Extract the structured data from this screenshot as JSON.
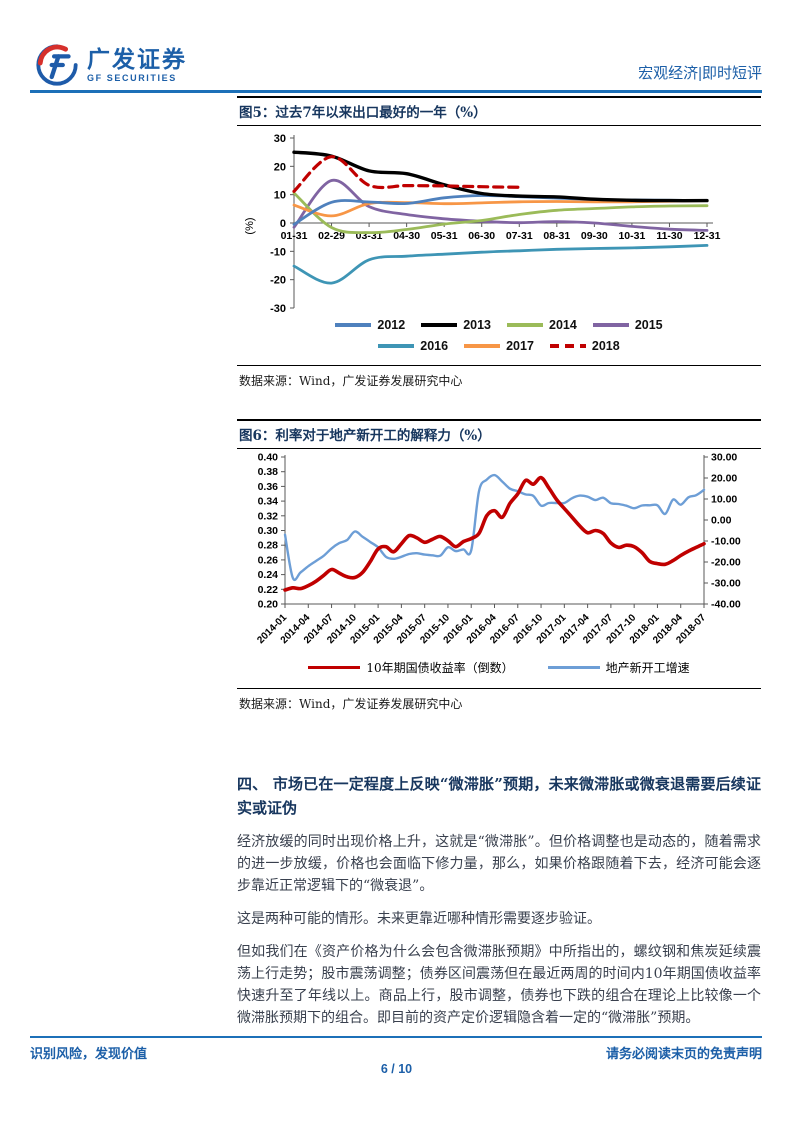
{
  "header": {
    "logo_cn": "广发证券",
    "logo_en": "GF SECURITIES",
    "report_type": "宏观经济|即时短评",
    "accent_color": "#1C70B8",
    "brand_color": "#1C5FA8"
  },
  "figure5": {
    "title": "图5：过去7年以来出口最好的一年（%）",
    "source": "数据来源：Wind，广发证券发展研究中心",
    "ylabel": "(%)"
  },
  "figure6": {
    "title": "图6：利率对于地产新开工的解释力（%）",
    "source": "数据来源：Wind，广发证券发展研究中心"
  },
  "section": {
    "heading": "四、 市场已在一定程度上反映“微滞胀”预期，未来微滞胀或微衰退需要后续证实或证伪",
    "paragraphs": [
      "经济放缓的同时出现价格上升，这就是“微滞胀”。但价格调整也是动态的，随着需求的进一步放缓，价格也会面临下修力量，那么，如果价格跟随着下去，经济可能会逐步靠近正常逻辑下的“微衰退”。",
      "这是两种可能的情形。未来更靠近哪种情形需要逐步验证。",
      "但如我们在《资产价格为什么会包含微滞胀预期》中所指出的，螺纹钢和焦炭延续震荡上行走势；股市震荡调整；债券区间震荡但在最近两周的时间内10年期国债收益率快速升至了年线以上。商品上行，股市调整，债券也下跌的组合在理论上比较像一个微滞胀预期下的组合。即目前的资产定价逻辑隐含着一定的“微滞胀”预期。"
    ]
  },
  "footer": {
    "left": "识别风险，发现价值",
    "right": "请务必阅读末页的免责声明",
    "page": "6 / 10"
  },
  "chart_data": [
    {
      "type": "line",
      "title": "过去7年以来出口最好的一年（%）",
      "ylabel": "(%)",
      "ylim": [
        -30,
        30
      ],
      "yticks": [
        30,
        20,
        10,
        0,
        -10,
        -20,
        -30
      ],
      "grid": false,
      "legend_position": "bottom",
      "categories": [
        "01-31",
        "02-29",
        "03-31",
        "04-30",
        "05-31",
        "06-30",
        "07-31",
        "08-31",
        "09-30",
        "10-31",
        "11-30",
        "12-31"
      ],
      "series": [
        {
          "name": "2012",
          "color": "#4F81BD",
          "style": "solid",
          "values": [
            -0.5,
            7.3,
            7.4,
            6.9,
            8.9,
            9.7,
            9.3,
            8.8,
            8.3,
            8.1,
            8.0,
            7.9
          ]
        },
        {
          "name": "2013",
          "color": "#000000",
          "style": "solid",
          "values": [
            25.0,
            23.6,
            18.4,
            17.4,
            13.5,
            10.4,
            9.5,
            9.2,
            8.4,
            8.0,
            7.9,
            7.9
          ]
        },
        {
          "name": "2014",
          "color": "#9BBB59",
          "style": "solid",
          "values": [
            10.6,
            -1.6,
            -3.4,
            -2.3,
            -0.4,
            0.9,
            3.0,
            4.5,
            5.1,
            5.7,
            6.0,
            6.1
          ]
        },
        {
          "name": "2015",
          "color": "#8064A2",
          "style": "solid",
          "values": [
            -1.5,
            15.0,
            5.8,
            3.0,
            1.5,
            0.6,
            0.1,
            0.5,
            0.0,
            -1.2,
            -2.2,
            -2.6
          ]
        },
        {
          "name": "2016",
          "color": "#3E95B5",
          "style": "solid",
          "values": [
            -15.2,
            -21.2,
            -13.0,
            -11.7,
            -11.0,
            -10.3,
            -9.8,
            -9.3,
            -9.0,
            -8.8,
            -8.4,
            -7.9
          ]
        },
        {
          "name": "2017",
          "color": "#F79646",
          "style": "solid",
          "values": [
            6.3,
            2.5,
            6.9,
            7.2,
            6.8,
            7.1,
            7.5,
            7.6,
            7.5,
            7.5,
            7.7,
            7.9
          ]
        },
        {
          "name": "2018",
          "color": "#C00000",
          "style": "dashed",
          "values": [
            11.2,
            23.4,
            13.3,
            13.2,
            13.1,
            12.8,
            12.6,
            null,
            null,
            null,
            null,
            null
          ]
        }
      ]
    },
    {
      "type": "line",
      "title": "利率对于地产新开工的解释力（%）",
      "dual_axis": true,
      "left_ylim": [
        0.2,
        0.4
      ],
      "left_yticks": [
        0.4,
        0.38,
        0.36,
        0.34,
        0.32,
        0.3,
        0.28,
        0.26,
        0.24,
        0.22,
        0.2
      ],
      "right_ylim": [
        -40,
        30
      ],
      "right_yticks": [
        30,
        20,
        10,
        0,
        -10,
        -20,
        -30,
        -40
      ],
      "grid": false,
      "legend_position": "bottom",
      "x_tick_every": 3,
      "x": [
        "2014-01",
        "2014-02",
        "2014-03",
        "2014-04",
        "2014-05",
        "2014-06",
        "2014-07",
        "2014-08",
        "2014-09",
        "2014-10",
        "2014-11",
        "2014-12",
        "2015-01",
        "2015-02",
        "2015-03",
        "2015-04",
        "2015-05",
        "2015-06",
        "2015-07",
        "2015-08",
        "2015-09",
        "2015-10",
        "2015-11",
        "2015-12",
        "2016-01",
        "2016-02",
        "2016-03",
        "2016-04",
        "2016-05",
        "2016-06",
        "2016-07",
        "2016-08",
        "2016-09",
        "2016-10",
        "2016-11",
        "2016-12",
        "2017-01",
        "2017-02",
        "2017-03",
        "2017-04",
        "2017-05",
        "2017-06",
        "2017-07",
        "2017-08",
        "2017-09",
        "2017-10",
        "2017-11",
        "2017-12",
        "2018-01",
        "2018-02",
        "2018-03",
        "2018-04",
        "2018-05",
        "2018-06",
        "2018-07"
      ],
      "series": [
        {
          "name": "10年期国债收益率（倒数）",
          "axis": "left",
          "color": "#C00000",
          "style": "solid",
          "values": [
            0.219,
            0.222,
            0.221,
            0.225,
            0.231,
            0.239,
            0.247,
            0.242,
            0.237,
            0.236,
            0.243,
            0.258,
            0.275,
            0.278,
            0.271,
            0.282,
            0.293,
            0.29,
            0.284,
            0.288,
            0.292,
            0.286,
            0.278,
            0.285,
            0.289,
            0.296,
            0.32,
            0.327,
            0.318,
            0.337,
            0.35,
            0.368,
            0.363,
            0.372,
            0.358,
            0.342,
            0.33,
            0.318,
            0.306,
            0.297,
            0.3,
            0.296,
            0.283,
            0.277,
            0.28,
            0.278,
            0.27,
            0.258,
            0.255,
            0.254,
            0.259,
            0.266,
            0.272,
            0.277,
            0.282
          ]
        },
        {
          "name": "地产新开工增速",
          "axis": "right",
          "color": "#6D9ED6",
          "style": "solid",
          "values": [
            -7,
            -27.5,
            -25,
            -22,
            -19.5,
            -17,
            -13.5,
            -11,
            -9.5,
            -5.5,
            -8,
            -10.5,
            -13,
            -17.5,
            -18.5,
            -17.5,
            -16.2,
            -15.8,
            -16.5,
            -16.8,
            -17,
            -13,
            -14.8,
            -14,
            -14.5,
            13.7,
            19.2,
            21.4,
            18.3,
            14.9,
            13.7,
            12.2,
            11.5,
            6.8,
            8.1,
            8.1,
            8.1,
            10.4,
            11.6,
            11.1,
            9.5,
            10.6,
            8.0,
            7.6,
            6.8,
            5.6,
            6.9,
            7.0,
            7.0,
            2.9,
            9.7,
            7.3,
            10.8,
            11.8,
            14.4
          ]
        }
      ]
    }
  ]
}
